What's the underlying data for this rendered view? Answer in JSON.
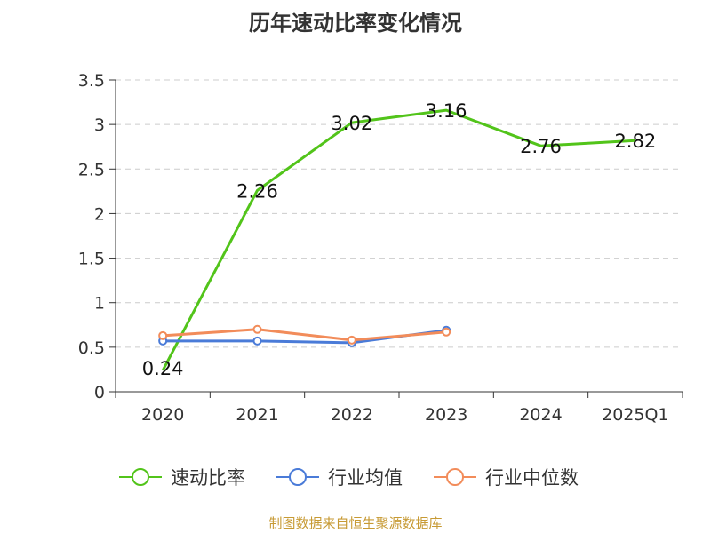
{
  "title": "历年速动比率变化情况",
  "source": "制图数据来自恒生聚源数据库",
  "chart_data": {
    "type": "line",
    "title": "历年速动比率变化情况",
    "categories": [
      "2020",
      "2021",
      "2022",
      "2023",
      "2024",
      "2025Q1"
    ],
    "ylim": [
      0,
      3.5
    ],
    "yticks": [
      0,
      0.5,
      1,
      1.5,
      2,
      2.5,
      3,
      3.5
    ],
    "ytick_labels": [
      "0",
      "0.5",
      "1",
      "1.5",
      "2",
      "2.5",
      "3",
      "3.5"
    ],
    "grid": true,
    "legend_position": "bottom",
    "series": [
      {
        "name": "速动比率",
        "color": "#52c41a",
        "values": [
          0.24,
          2.26,
          3.02,
          3.16,
          2.76,
          2.82
        ],
        "labels": [
          "0.24",
          "2.26",
          "3.02",
          "3.16",
          "2.76",
          "2.82"
        ],
        "markers": false
      },
      {
        "name": "行业均值",
        "color": "#4a7bd8",
        "values": [
          0.57,
          0.57,
          0.55,
          0.69,
          null,
          null
        ],
        "markers": true
      },
      {
        "name": "行业中位数",
        "color": "#f28c5a",
        "values": [
          0.63,
          0.7,
          0.58,
          0.67,
          null,
          null
        ],
        "markers": true
      }
    ]
  }
}
